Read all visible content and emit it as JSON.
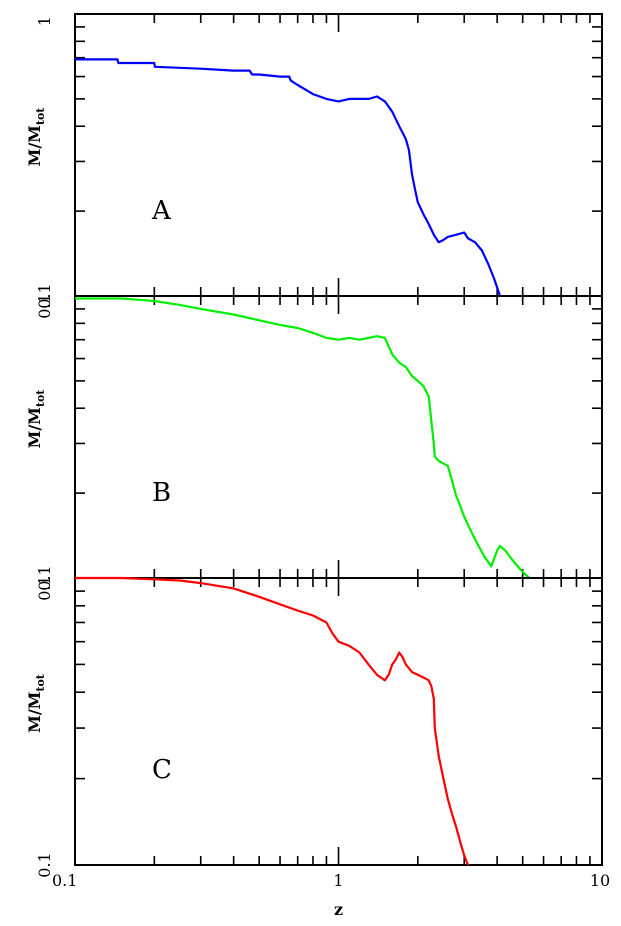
{
  "chart_data": {
    "type": "line",
    "x_scale": "log",
    "y_scale": "log",
    "xlim": [
      0.1,
      10
    ],
    "ylim": [
      0.1,
      1
    ],
    "xlabel": "z",
    "x_tick_labels": [
      "0.1",
      "1",
      "10"
    ],
    "panels": [
      {
        "panel_label": "A",
        "ylabel": "M/M",
        "ylabel_sub": "tot",
        "y_tick_labels": [
          "1",
          "0.1"
        ],
        "color": "#0000ff",
        "series": {
          "x": [
            0.1,
            0.145,
            0.146,
            0.2,
            0.201,
            0.3,
            0.4,
            0.46,
            0.47,
            0.5,
            0.6,
            0.65,
            0.66,
            0.7,
            0.8,
            0.9,
            1.0,
            1.1,
            1.2,
            1.3,
            1.4,
            1.45,
            1.5,
            1.6,
            1.7,
            1.75,
            1.8,
            1.85,
            1.9,
            1.95,
            2.0,
            2.05,
            2.1,
            2.2,
            2.3,
            2.4,
            2.5,
            2.6,
            2.8,
            3.0,
            3.1,
            3.3,
            3.5,
            3.7,
            3.9,
            4.1
          ],
          "y": [
            0.69,
            0.69,
            0.67,
            0.67,
            0.65,
            0.64,
            0.63,
            0.63,
            0.61,
            0.61,
            0.6,
            0.6,
            0.58,
            0.56,
            0.52,
            0.5,
            0.49,
            0.5,
            0.5,
            0.5,
            0.51,
            0.5,
            0.49,
            0.45,
            0.4,
            0.38,
            0.36,
            0.33,
            0.27,
            0.24,
            0.215,
            0.205,
            0.195,
            0.18,
            0.165,
            0.155,
            0.158,
            0.162,
            0.165,
            0.168,
            0.16,
            0.155,
            0.145,
            0.13,
            0.115,
            0.1
          ]
        }
      },
      {
        "panel_label": "B",
        "ylabel": "M/M",
        "ylabel_sub": "tot",
        "y_tick_labels": [
          "0.1"
        ],
        "color": "#00ee00",
        "series": {
          "x": [
            0.1,
            0.15,
            0.2,
            0.25,
            0.3,
            0.4,
            0.5,
            0.6,
            0.7,
            0.8,
            0.9,
            1.0,
            1.1,
            1.2,
            1.3,
            1.4,
            1.5,
            1.6,
            1.7,
            1.8,
            1.9,
            2.0,
            2.1,
            2.2,
            2.3,
            2.32,
            2.4,
            2.6,
            2.7,
            2.8,
            2.9,
            3.0,
            3.2,
            3.4,
            3.6,
            3.8,
            4.0,
            4.1,
            4.3,
            4.6,
            5.0,
            5.3
          ],
          "y": [
            0.98,
            0.98,
            0.96,
            0.93,
            0.9,
            0.86,
            0.82,
            0.79,
            0.77,
            0.74,
            0.71,
            0.7,
            0.71,
            0.7,
            0.71,
            0.72,
            0.71,
            0.62,
            0.58,
            0.56,
            0.52,
            0.5,
            0.48,
            0.44,
            0.3,
            0.27,
            0.26,
            0.25,
            0.22,
            0.195,
            0.18,
            0.165,
            0.145,
            0.13,
            0.118,
            0.11,
            0.125,
            0.13,
            0.125,
            0.115,
            0.105,
            0.1
          ]
        }
      },
      {
        "panel_label": "C",
        "ylabel": "M/M",
        "ylabel_sub": "tot",
        "y_tick_labels": [
          "0.1"
        ],
        "color": "#ff0000",
        "series": {
          "x": [
            0.1,
            0.15,
            0.2,
            0.25,
            0.3,
            0.4,
            0.5,
            0.6,
            0.7,
            0.8,
            0.9,
            0.95,
            1.0,
            1.1,
            1.2,
            1.3,
            1.4,
            1.5,
            1.55,
            1.6,
            1.65,
            1.7,
            1.75,
            1.8,
            1.9,
            2.0,
            2.1,
            2.2,
            2.25,
            2.3,
            2.32,
            2.4,
            2.5,
            2.6,
            2.7,
            2.8,
            2.9,
            3.0,
            3.1
          ],
          "y": [
            1.0,
            1.0,
            0.99,
            0.98,
            0.96,
            0.92,
            0.86,
            0.81,
            0.77,
            0.74,
            0.7,
            0.64,
            0.6,
            0.58,
            0.55,
            0.5,
            0.46,
            0.44,
            0.46,
            0.5,
            0.52,
            0.55,
            0.53,
            0.5,
            0.47,
            0.46,
            0.45,
            0.44,
            0.42,
            0.38,
            0.3,
            0.24,
            0.2,
            0.17,
            0.15,
            0.135,
            0.12,
            0.108,
            0.1
          ]
        }
      }
    ]
  }
}
